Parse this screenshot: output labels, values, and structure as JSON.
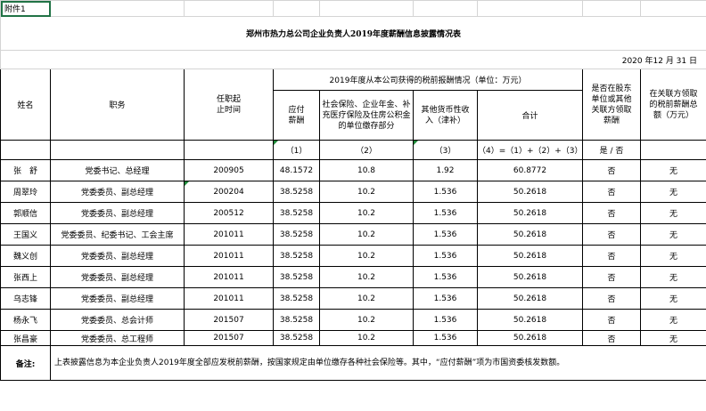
{
  "annex_label": "附件1",
  "title": "郑州市热力总公司企业负责人2019年度薪酬信息披露情况表",
  "date": "2020 年12 月 31 日",
  "headers": {
    "name": "姓名",
    "position": "职务",
    "tenure": "任职起止时间",
    "group": "2019年度从本公司获得的税前报酬情况（单位：万元）",
    "salary": "应付薪酬",
    "social": "社会保险、企业年金、补充医疗保险及住房公积金的单位缴存部分",
    "other": "其他货币性收入（津补）",
    "total": "合计",
    "shareholder": "是否在股东单位或其他关联方领取薪酬",
    "related": "在关联方领取的税前薪酬总额（万元）"
  },
  "subheaders": {
    "salary": "（1）",
    "social": "（2）",
    "other": "（3）",
    "total": "（4）=（1）+（2）+（3）",
    "shareholder": "是 / 否"
  },
  "rows": [
    {
      "name": "张　舒",
      "position": "党委书记、总经理",
      "tenure": "200905",
      "salary": "48.1572",
      "social": "10.8",
      "other": "1.92",
      "total": "60.8772",
      "shareholder": "否",
      "related": "无"
    },
    {
      "name": "周翠玲",
      "position": "党委委员、副总经理",
      "tenure": "200204",
      "salary": "38.5258",
      "social": "10.2",
      "other": "1.536",
      "total": "50.2618",
      "shareholder": "否",
      "related": "无"
    },
    {
      "name": "郭顺信",
      "position": "党委委员、副总经理",
      "tenure": "200512",
      "salary": "38.5258",
      "social": "10.2",
      "other": "1.536",
      "total": "50.2618",
      "shareholder": "否",
      "related": "无"
    },
    {
      "name": "王国义",
      "position": "党委委员、纪委书记、工会主席",
      "tenure": "201011",
      "salary": "38.5258",
      "social": "10.2",
      "other": "1.536",
      "total": "50.2618",
      "shareholder": "否",
      "related": "无"
    },
    {
      "name": "魏义创",
      "position": "党委委员、副总经理",
      "tenure": "201011",
      "salary": "38.5258",
      "social": "10.2",
      "other": "1.536",
      "total": "50.2618",
      "shareholder": "否",
      "related": "无"
    },
    {
      "name": "张西上",
      "position": "党委委员、副总经理",
      "tenure": "201011",
      "salary": "38.5258",
      "social": "10.2",
      "other": "1.536",
      "total": "50.2618",
      "shareholder": "否",
      "related": "无"
    },
    {
      "name": "乌志锋",
      "position": "党委委员、副总经理",
      "tenure": "201011",
      "salary": "38.5258",
      "social": "10.2",
      "other": "1.536",
      "total": "50.2618",
      "shareholder": "否",
      "related": "无"
    },
    {
      "name": "杨永飞",
      "position": "党委委员、总会计师",
      "tenure": "201507",
      "salary": "38.5258",
      "social": "10.2",
      "other": "1.536",
      "total": "50.2618",
      "shareholder": "否",
      "related": "无"
    },
    {
      "name": "张昌豪",
      "position": "党委委员、总工程师",
      "tenure": "201507",
      "salary": "38.5258",
      "social": "10.2",
      "other": "1.536",
      "total": "50.2618",
      "shareholder": "否",
      "related": "无"
    }
  ],
  "note_label": "备注:",
  "note_text": "上表披露信息为本企业负责人2019年度全部应发税前薪酬，按国家规定由单位缴存各种社会保险等。其中，“应付薪酬”项为市国资委核发数额。",
  "colors": {
    "gridline": "#d4d4d4",
    "border": "#000000",
    "selection": "#217346",
    "comment_marker": "#1e8a3a"
  }
}
